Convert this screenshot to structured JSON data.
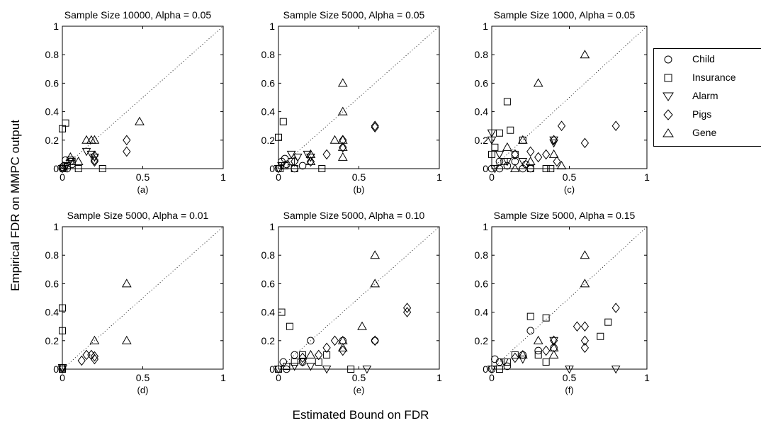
{
  "figure": {
    "xlabel": "Estimated Bound on FDR",
    "ylabel": "Empirical FDR on MMPC output"
  },
  "legend": {
    "entries": [
      {
        "label": "Child",
        "marker": "circle"
      },
      {
        "label": "Insurance",
        "marker": "square"
      },
      {
        "label": "Alarm",
        "marker": "triangle-down"
      },
      {
        "label": "Pigs",
        "marker": "diamond"
      },
      {
        "label": "Gene",
        "marker": "triangle-up"
      }
    ]
  },
  "chart_data": [
    {
      "type": "scatter",
      "title": "Sample Size 10000, Alpha = 0.05",
      "panel_label": "(a)",
      "xlim": [
        0,
        1
      ],
      "ylim": [
        0,
        1
      ],
      "xticks": [
        "0",
        "0.5",
        "1"
      ],
      "yticks": [
        "0",
        "0.2",
        "0.4",
        "0.6",
        "0.8",
        "1"
      ],
      "series": [
        {
          "name": "Child",
          "points": [
            [
              0.0,
              0.0
            ],
            [
              0.01,
              0.02
            ],
            [
              0.02,
              0.06
            ],
            [
              0.03,
              0.0
            ],
            [
              0.05,
              0.05
            ],
            [
              0.0,
              0.01
            ],
            [
              0.06,
              0.03
            ]
          ]
        },
        {
          "name": "Insurance",
          "points": [
            [
              0.0,
              0.28
            ],
            [
              0.02,
              0.32
            ],
            [
              0.01,
              0.0
            ],
            [
              0.03,
              0.02
            ],
            [
              0.1,
              0.0
            ],
            [
              0.25,
              0.0
            ],
            [
              0.06,
              0.05
            ]
          ]
        },
        {
          "name": "Alarm",
          "points": [
            [
              0.0,
              0.0
            ],
            [
              0.05,
              0.06
            ],
            [
              0.15,
              0.12
            ],
            [
              0.18,
              0.1
            ],
            [
              0.2,
              0.08
            ],
            [
              0.02,
              0.01
            ]
          ]
        },
        {
          "name": "Pigs",
          "points": [
            [
              0.2,
              0.06
            ],
            [
              0.2,
              0.09
            ],
            [
              0.4,
              0.12
            ],
            [
              0.4,
              0.2
            ],
            [
              0.2,
              0.05
            ]
          ]
        },
        {
          "name": "Gene",
          "points": [
            [
              0.05,
              0.08
            ],
            [
              0.1,
              0.05
            ],
            [
              0.15,
              0.2
            ],
            [
              0.18,
              0.2
            ],
            [
              0.2,
              0.2
            ],
            [
              0.48,
              0.33
            ]
          ]
        }
      ]
    },
    {
      "type": "scatter",
      "title": "Sample Size 5000, Alpha = 0.05",
      "panel_label": "(b)",
      "xlim": [
        0,
        1
      ],
      "ylim": [
        0,
        1
      ],
      "xticks": [
        "0",
        "0.5",
        "1"
      ],
      "yticks": [
        "0",
        "0.2",
        "0.4",
        "0.6",
        "0.8",
        "1"
      ],
      "series": [
        {
          "name": "Child",
          "points": [
            [
              0.0,
              0.0
            ],
            [
              0.02,
              0.05
            ],
            [
              0.04,
              0.07
            ],
            [
              0.1,
              0.0
            ],
            [
              0.15,
              0.02
            ],
            [
              0.05,
              0.03
            ]
          ]
        },
        {
          "name": "Insurance",
          "points": [
            [
              0.0,
              0.22
            ],
            [
              0.03,
              0.33
            ],
            [
              0.01,
              0.0
            ],
            [
              0.04,
              0.02
            ],
            [
              0.08,
              0.05
            ],
            [
              0.27,
              0.0
            ],
            [
              0.1,
              0.0
            ]
          ]
        },
        {
          "name": "Alarm",
          "points": [
            [
              0.0,
              0.0
            ],
            [
              0.08,
              0.1
            ],
            [
              0.12,
              0.08
            ],
            [
              0.18,
              0.1
            ],
            [
              0.2,
              0.08
            ],
            [
              0.02,
              0.02
            ]
          ]
        },
        {
          "name": "Pigs",
          "points": [
            [
              0.1,
              0.05
            ],
            [
              0.2,
              0.05
            ],
            [
              0.3,
              0.1
            ],
            [
              0.4,
              0.15
            ],
            [
              0.4,
              0.2
            ],
            [
              0.6,
              0.3
            ],
            [
              0.6,
              0.29
            ]
          ]
        },
        {
          "name": "Gene",
          "points": [
            [
              0.2,
              0.1
            ],
            [
              0.2,
              0.05
            ],
            [
              0.35,
              0.2
            ],
            [
              0.4,
              0.6
            ],
            [
              0.4,
              0.4
            ],
            [
              0.4,
              0.2
            ],
            [
              0.4,
              0.15
            ],
            [
              0.4,
              0.08
            ]
          ]
        }
      ]
    },
    {
      "type": "scatter",
      "title": "Sample Size 1000, Alpha = 0.05",
      "panel_label": "(c)",
      "xlim": [
        0,
        1
      ],
      "ylim": [
        0,
        1
      ],
      "xticks": [
        "0",
        "0.5",
        "1"
      ],
      "yticks": [
        "0",
        "0.2",
        "0.4",
        "0.6",
        "0.8",
        "1"
      ],
      "series": [
        {
          "name": "Child",
          "points": [
            [
              0.0,
              0.0
            ],
            [
              0.05,
              0.05
            ],
            [
              0.1,
              0.02
            ],
            [
              0.15,
              0.05
            ],
            [
              0.2,
              0.0
            ],
            [
              0.22,
              0.03
            ],
            [
              0.25,
              0.0
            ],
            [
              0.05,
              0.0
            ]
          ]
        },
        {
          "name": "Insurance",
          "points": [
            [
              0.0,
              0.1
            ],
            [
              0.05,
              0.25
            ],
            [
              0.1,
              0.47
            ],
            [
              0.12,
              0.27
            ],
            [
              0.15,
              0.1
            ],
            [
              0.2,
              0.2
            ],
            [
              0.25,
              0.0
            ],
            [
              0.35,
              0.0
            ],
            [
              0.38,
              0.0
            ],
            [
              0.02,
              0.15
            ],
            [
              0.08,
              0.05
            ]
          ]
        },
        {
          "name": "Alarm",
          "points": [
            [
              0.0,
              0.25
            ],
            [
              0.0,
              0.2
            ],
            [
              0.05,
              0.1
            ],
            [
              0.1,
              0.05
            ],
            [
              0.2,
              0.05
            ],
            [
              0.4,
              0.2
            ],
            [
              0.4,
              0.18
            ],
            [
              0.02,
              0.0
            ]
          ]
        },
        {
          "name": "Pigs",
          "points": [
            [
              0.15,
              0.1
            ],
            [
              0.25,
              0.12
            ],
            [
              0.3,
              0.08
            ],
            [
              0.35,
              0.1
            ],
            [
              0.4,
              0.2
            ],
            [
              0.45,
              0.3
            ],
            [
              0.6,
              0.18
            ],
            [
              0.8,
              0.3
            ],
            [
              0.42,
              0.05
            ]
          ]
        },
        {
          "name": "Gene",
          "points": [
            [
              0.1,
              0.15
            ],
            [
              0.2,
              0.2
            ],
            [
              0.25,
              0.05
            ],
            [
              0.3,
              0.6
            ],
            [
              0.4,
              0.1
            ],
            [
              0.6,
              0.8
            ],
            [
              0.45,
              0.02
            ],
            [
              0.15,
              0.0
            ]
          ]
        }
      ]
    },
    {
      "type": "scatter",
      "title": "Sample Size 5000, Alpha = 0.01",
      "panel_label": "(d)",
      "xlim": [
        0,
        1
      ],
      "ylim": [
        0,
        1
      ],
      "xticks": [
        "0",
        "0.5",
        "1"
      ],
      "yticks": [
        "0",
        "0.2",
        "0.4",
        "0.6",
        "0.8",
        "1"
      ],
      "series": [
        {
          "name": "Child",
          "points": [
            [
              0.0,
              0.0
            ],
            [
              0.0,
              0.01
            ]
          ]
        },
        {
          "name": "Insurance",
          "points": [
            [
              0.0,
              0.27
            ],
            [
              0.0,
              0.43
            ],
            [
              0.0,
              0.0
            ]
          ]
        },
        {
          "name": "Alarm",
          "points": [
            [
              0.0,
              0.0
            ],
            [
              0.0,
              0.01
            ]
          ]
        },
        {
          "name": "Pigs",
          "points": [
            [
              0.12,
              0.06
            ],
            [
              0.15,
              0.1
            ],
            [
              0.18,
              0.1
            ],
            [
              0.2,
              0.07
            ],
            [
              0.2,
              0.09
            ]
          ]
        },
        {
          "name": "Gene",
          "points": [
            [
              0.2,
              0.2
            ],
            [
              0.4,
              0.6
            ],
            [
              0.4,
              0.2
            ]
          ]
        }
      ]
    },
    {
      "type": "scatter",
      "title": "Sample Size 5000, Alpha = 0.10",
      "panel_label": "(e)",
      "xlim": [
        0,
        1
      ],
      "ylim": [
        0,
        1
      ],
      "xticks": [
        "0",
        "0.5",
        "1"
      ],
      "yticks": [
        "0",
        "0.2",
        "0.4",
        "0.6",
        "0.8",
        "1"
      ],
      "series": [
        {
          "name": "Child",
          "points": [
            [
              0.0,
              0.0
            ],
            [
              0.03,
              0.05
            ],
            [
              0.1,
              0.1
            ],
            [
              0.15,
              0.05
            ],
            [
              0.2,
              0.2
            ],
            [
              0.4,
              0.2
            ],
            [
              0.6,
              0.2
            ],
            [
              0.05,
              0.0
            ]
          ]
        },
        {
          "name": "Insurance",
          "points": [
            [
              0.02,
              0.4
            ],
            [
              0.07,
              0.3
            ],
            [
              0.0,
              0.0
            ],
            [
              0.1,
              0.05
            ],
            [
              0.15,
              0.1
            ],
            [
              0.3,
              0.1
            ],
            [
              0.45,
              0.0
            ],
            [
              0.25,
              0.05
            ],
            [
              0.05,
              0.02
            ]
          ]
        },
        {
          "name": "Alarm",
          "points": [
            [
              0.0,
              0.0
            ],
            [
              0.15,
              0.05
            ],
            [
              0.2,
              0.02
            ],
            [
              0.3,
              0.0
            ],
            [
              0.55,
              0.0
            ],
            [
              0.1,
              0.02
            ]
          ]
        },
        {
          "name": "Pigs",
          "points": [
            [
              0.15,
              0.08
            ],
            [
              0.25,
              0.1
            ],
            [
              0.3,
              0.15
            ],
            [
              0.35,
              0.2
            ],
            [
              0.4,
              0.13
            ],
            [
              0.6,
              0.2
            ],
            [
              0.8,
              0.43
            ],
            [
              0.8,
              0.4
            ]
          ]
        },
        {
          "name": "Gene",
          "points": [
            [
              0.2,
              0.1
            ],
            [
              0.4,
              0.2
            ],
            [
              0.52,
              0.3
            ],
            [
              0.6,
              0.8
            ],
            [
              0.6,
              0.6
            ],
            [
              0.4,
              0.15
            ]
          ]
        }
      ]
    },
    {
      "type": "scatter",
      "title": "Sample Size 5000, Alpha = 0.15",
      "panel_label": "(f)",
      "xlim": [
        0,
        1
      ],
      "ylim": [
        0,
        1
      ],
      "xticks": [
        "0",
        "0.5",
        "1"
      ],
      "yticks": [
        "0",
        "0.2",
        "0.4",
        "0.6",
        "0.8",
        "1"
      ],
      "series": [
        {
          "name": "Child",
          "points": [
            [
              0.0,
              0.0
            ],
            [
              0.05,
              0.05
            ],
            [
              0.1,
              0.02
            ],
            [
              0.2,
              0.1
            ],
            [
              0.25,
              0.27
            ],
            [
              0.3,
              0.13
            ],
            [
              0.4,
              0.15
            ],
            [
              0.02,
              0.07
            ]
          ]
        },
        {
          "name": "Insurance",
          "points": [
            [
              0.15,
              0.1
            ],
            [
              0.25,
              0.37
            ],
            [
              0.35,
              0.36
            ],
            [
              0.3,
              0.1
            ],
            [
              0.35,
              0.05
            ],
            [
              0.7,
              0.23
            ],
            [
              0.75,
              0.33
            ],
            [
              0.05,
              0.0
            ],
            [
              0.1,
              0.05
            ]
          ]
        },
        {
          "name": "Alarm",
          "points": [
            [
              0.0,
              0.0
            ],
            [
              0.08,
              0.05
            ],
            [
              0.2,
              0.07
            ],
            [
              0.4,
              0.2
            ],
            [
              0.5,
              0.0
            ],
            [
              0.8,
              0.0
            ]
          ]
        },
        {
          "name": "Pigs",
          "points": [
            [
              0.15,
              0.08
            ],
            [
              0.35,
              0.13
            ],
            [
              0.4,
              0.2
            ],
            [
              0.55,
              0.3
            ],
            [
              0.6,
              0.3
            ],
            [
              0.6,
              0.2
            ],
            [
              0.6,
              0.15
            ],
            [
              0.8,
              0.43
            ]
          ]
        },
        {
          "name": "Gene",
          "points": [
            [
              0.2,
              0.1
            ],
            [
              0.3,
              0.2
            ],
            [
              0.4,
              0.15
            ],
            [
              0.6,
              0.8
            ],
            [
              0.6,
              0.6
            ],
            [
              0.4,
              0.1
            ]
          ]
        }
      ]
    }
  ]
}
